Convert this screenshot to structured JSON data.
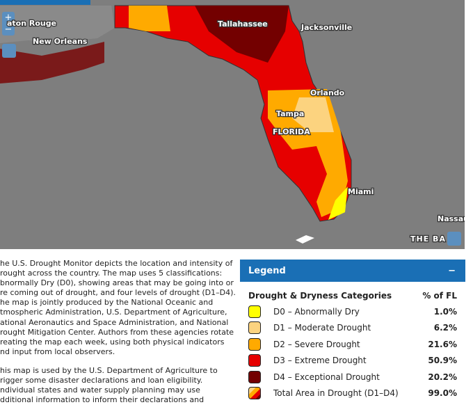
{
  "map": {
    "zoom_in": "+",
    "zoom_out": "−",
    "places": [
      "aton Rouge",
      "New Orleans",
      "Tallahassee",
      "Jacksonville",
      "Orlando",
      "Tampa",
      "FLORIDA",
      "Miami",
      "Nassau"
    ],
    "attribution": "THE BA"
  },
  "description": {
    "paragraphs": [
      [
        "he U.S. Drought Monitor depicts the location and intensity of",
        "rought across the country. The map uses 5 classifications:",
        "bnormally Dry (D0), showing areas that may be going into or",
        "re coming out of drought, and four levels of drought (D1–D4).",
        "he map is jointly produced by the National Oceanic and",
        "tmospheric Administration,  U.S. Department of Agriculture,",
        "ational Aeronautics and Space Administration, and National",
        "rought Mitigation Center. Authors from these agencies rotate",
        "reating the map each week, using both physical indicators",
        "nd  input from local observers."
      ],
      [
        "his map is used by the U.S. Department of Agriculture to",
        "rigger some disaster declarations and loan eligibility.",
        "ndividual states and water supply planning may use",
        "dditional information to inform their declarations and"
      ]
    ]
  },
  "legend": {
    "title": "Legend",
    "collapse": "−",
    "heading": "Drought & Dryness Categories",
    "column": "% of FL",
    "rows": [
      {
        "label": "D0 – Abnormally Dry",
        "value": "1.0%",
        "color": "#ffff00"
      },
      {
        "label": "D1 – Moderate Drought",
        "value": "6.2%",
        "color": "#fcd37f"
      },
      {
        "label": "D2 – Severe Drought",
        "value": "21.6%",
        "color": "#ffaa00"
      },
      {
        "label": "D3 – Extreme Drought",
        "value": "50.9%",
        "color": "#e60000"
      },
      {
        "label": "D4 – Exceptional Drought",
        "value": "20.2%",
        "color": "#730000"
      },
      {
        "label": "Total Area in Drought (D1–D4)",
        "value": "99.0%"
      }
    ]
  }
}
